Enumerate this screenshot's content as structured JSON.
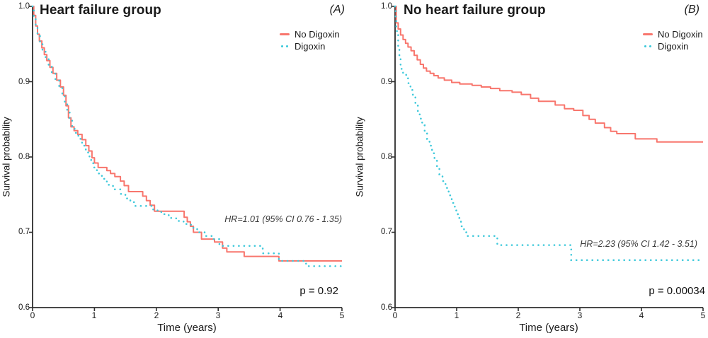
{
  "figure": {
    "background": "#ffffff",
    "axis_color": "#2e2e2e",
    "text_color": "#1a1a1a",
    "annotation_color": "#3a3a3a"
  },
  "chart_data": [
    {
      "type": "line",
      "chart_kind": "kaplan-meier-step-curve",
      "panel_label": "(A)",
      "title": "Heart failure group",
      "xlabel": "Time (years)",
      "ylabel": "Survival probability",
      "xlim": [
        0,
        5
      ],
      "ylim": [
        0.6,
        1.0
      ],
      "x_ticks": [
        0,
        1,
        2,
        3,
        4,
        5
      ],
      "x_tick_labels": [
        "0",
        "1",
        "2",
        "3",
        "4",
        "5"
      ],
      "y_ticks": [
        1.0,
        0.9,
        0.8,
        0.7,
        0.6
      ],
      "y_tick_labels": [
        "1.0",
        "0.9",
        "0.8",
        "0.7",
        "0.6"
      ],
      "grid": false,
      "legend_position": "top-right",
      "hr_annotation": "HR=1.01 (95% CI 0.76 - 1.35)",
      "p_value_label": "p = 0.92",
      "series": [
        {
          "name": "No Digoxin",
          "color": "#F8766D",
          "line_style": "solid",
          "steps": [
            [
              0,
              1.0
            ],
            [
              0.02,
              0.988
            ],
            [
              0.05,
              0.974
            ],
            [
              0.08,
              0.963
            ],
            [
              0.11,
              0.954
            ],
            [
              0.15,
              0.945
            ],
            [
              0.19,
              0.936
            ],
            [
              0.23,
              0.928
            ],
            [
              0.28,
              0.919
            ],
            [
              0.33,
              0.911
            ],
            [
              0.39,
              0.902
            ],
            [
              0.45,
              0.893
            ],
            [
              0.5,
              0.882
            ],
            [
              0.54,
              0.868
            ],
            [
              0.58,
              0.852
            ],
            [
              0.62,
              0.84
            ],
            [
              0.67,
              0.835
            ],
            [
              0.73,
              0.83
            ],
            [
              0.8,
              0.823
            ],
            [
              0.86,
              0.815
            ],
            [
              0.91,
              0.808
            ],
            [
              0.96,
              0.799
            ],
            [
              1.0,
              0.792
            ],
            [
              1.06,
              0.786
            ],
            [
              1.2,
              0.782
            ],
            [
              1.26,
              0.778
            ],
            [
              1.33,
              0.774
            ],
            [
              1.42,
              0.768
            ],
            [
              1.48,
              0.762
            ],
            [
              1.55,
              0.754
            ],
            [
              1.78,
              0.748
            ],
            [
              1.84,
              0.742
            ],
            [
              1.9,
              0.736
            ],
            [
              1.97,
              0.728
            ],
            [
              2.45,
              0.72
            ],
            [
              2.5,
              0.714
            ],
            [
              2.55,
              0.708
            ],
            [
              2.6,
              0.7
            ],
            [
              2.73,
              0.691
            ],
            [
              2.94,
              0.687
            ],
            [
              3.07,
              0.679
            ],
            [
              3.14,
              0.674
            ],
            [
              3.42,
              0.668
            ],
            [
              3.98,
              0.662
            ],
            [
              5,
              0.662
            ]
          ]
        },
        {
          "name": "Digoxin",
          "color": "#3FC9DB",
          "line_style": "dotted",
          "steps": [
            [
              0,
              1.0
            ],
            [
              0.02,
              0.986
            ],
            [
              0.05,
              0.972
            ],
            [
              0.08,
              0.961
            ],
            [
              0.12,
              0.95
            ],
            [
              0.16,
              0.94
            ],
            [
              0.21,
              0.93
            ],
            [
              0.26,
              0.921
            ],
            [
              0.31,
              0.912
            ],
            [
              0.37,
              0.903
            ],
            [
              0.43,
              0.893
            ],
            [
              0.48,
              0.882
            ],
            [
              0.52,
              0.872
            ],
            [
              0.56,
              0.862
            ],
            [
              0.6,
              0.85
            ],
            [
              0.64,
              0.84
            ],
            [
              0.68,
              0.832
            ],
            [
              0.74,
              0.824
            ],
            [
              0.8,
              0.815
            ],
            [
              0.86,
              0.806
            ],
            [
              0.92,
              0.796
            ],
            [
              0.98,
              0.786
            ],
            [
              1.04,
              0.778
            ],
            [
              1.12,
              0.771
            ],
            [
              1.2,
              0.763
            ],
            [
              1.3,
              0.757
            ],
            [
              1.42,
              0.751
            ],
            [
              1.5,
              0.745
            ],
            [
              1.58,
              0.74
            ],
            [
              1.66,
              0.735
            ],
            [
              1.95,
              0.729
            ],
            [
              2.08,
              0.724
            ],
            [
              2.2,
              0.719
            ],
            [
              2.32,
              0.715
            ],
            [
              2.44,
              0.711
            ],
            [
              2.56,
              0.706
            ],
            [
              2.66,
              0.7
            ],
            [
              2.78,
              0.695
            ],
            [
              2.9,
              0.691
            ],
            [
              3.02,
              0.682
            ],
            [
              3.72,
              0.672
            ],
            [
              3.98,
              0.662
            ],
            [
              4.42,
              0.655
            ],
            [
              5,
              0.655
            ]
          ]
        }
      ]
    },
    {
      "type": "line",
      "chart_kind": "kaplan-meier-step-curve",
      "panel_label": "(B)",
      "title": "No heart failure group",
      "xlabel": "Time (years)",
      "ylabel": "Survival probability",
      "xlim": [
        0,
        5
      ],
      "ylim": [
        0.6,
        1.0
      ],
      "x_ticks": [
        0,
        1,
        2,
        3,
        4,
        5
      ],
      "x_tick_labels": [
        "0",
        "1",
        "2",
        "3",
        "4",
        "5"
      ],
      "y_ticks": [
        1.0,
        0.9,
        0.8,
        0.7,
        0.6
      ],
      "y_tick_labels": [
        "1.0",
        "0.9",
        "0.8",
        "0.7",
        "0.6"
      ],
      "grid": false,
      "legend_position": "top-right",
      "hr_annotation": "HR=2.23 (95% CI 1.42 - 3.51)",
      "p_value_label": "p = 0.00034",
      "series": [
        {
          "name": "No Digoxin",
          "color": "#F8766D",
          "line_style": "solid",
          "steps": [
            [
              0,
              1.0
            ],
            [
              0.02,
              0.978
            ],
            [
              0.05,
              0.97
            ],
            [
              0.09,
              0.962
            ],
            [
              0.13,
              0.956
            ],
            [
              0.17,
              0.951
            ],
            [
              0.21,
              0.946
            ],
            [
              0.26,
              0.941
            ],
            [
              0.31,
              0.935
            ],
            [
              0.36,
              0.929
            ],
            [
              0.41,
              0.923
            ],
            [
              0.46,
              0.918
            ],
            [
              0.51,
              0.914
            ],
            [
              0.57,
              0.911
            ],
            [
              0.63,
              0.908
            ],
            [
              0.7,
              0.905
            ],
            [
              0.8,
              0.902
            ],
            [
              0.92,
              0.899
            ],
            [
              1.05,
              0.897
            ],
            [
              1.25,
              0.895
            ],
            [
              1.4,
              0.893
            ],
            [
              1.55,
              0.891
            ],
            [
              1.7,
              0.888
            ],
            [
              1.9,
              0.886
            ],
            [
              2.05,
              0.883
            ],
            [
              2.2,
              0.878
            ],
            [
              2.33,
              0.874
            ],
            [
              2.6,
              0.869
            ],
            [
              2.75,
              0.864
            ],
            [
              2.9,
              0.862
            ],
            [
              3.05,
              0.855
            ],
            [
              3.15,
              0.85
            ],
            [
              3.25,
              0.845
            ],
            [
              3.4,
              0.839
            ],
            [
              3.5,
              0.834
            ],
            [
              3.6,
              0.831
            ],
            [
              3.9,
              0.824
            ],
            [
              4.25,
              0.82
            ],
            [
              5,
              0.82
            ]
          ]
        },
        {
          "name": "Digoxin",
          "color": "#3FC9DB",
          "line_style": "dotted",
          "steps": [
            [
              0,
              1.0
            ],
            [
              0.01,
              0.985
            ],
            [
              0.02,
              0.973
            ],
            [
              0.03,
              0.962
            ],
            [
              0.05,
              0.945
            ],
            [
              0.07,
              0.93
            ],
            [
              0.09,
              0.917
            ],
            [
              0.13,
              0.911
            ],
            [
              0.18,
              0.905
            ],
            [
              0.21,
              0.898
            ],
            [
              0.25,
              0.889
            ],
            [
              0.29,
              0.88
            ],
            [
              0.33,
              0.87
            ],
            [
              0.37,
              0.86
            ],
            [
              0.4,
              0.851
            ],
            [
              0.44,
              0.842
            ],
            [
              0.48,
              0.833
            ],
            [
              0.52,
              0.824
            ],
            [
              0.56,
              0.815
            ],
            [
              0.6,
              0.805
            ],
            [
              0.64,
              0.795
            ],
            [
              0.68,
              0.785
            ],
            [
              0.72,
              0.777
            ],
            [
              0.77,
              0.768
            ],
            [
              0.82,
              0.759
            ],
            [
              0.87,
              0.749
            ],
            [
              0.92,
              0.739
            ],
            [
              0.97,
              0.729
            ],
            [
              1.02,
              0.719
            ],
            [
              1.07,
              0.708
            ],
            [
              1.12,
              0.7
            ],
            [
              1.16,
              0.695
            ],
            [
              1.66,
              0.683
            ],
            [
              2.86,
              0.663
            ],
            [
              5,
              0.663
            ]
          ]
        }
      ]
    }
  ]
}
